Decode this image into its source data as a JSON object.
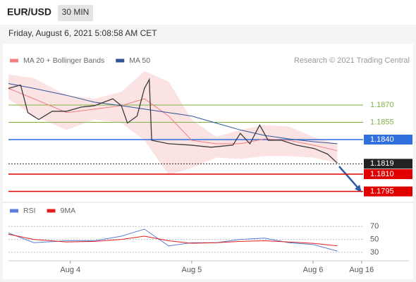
{
  "header": {
    "symbol": "EUR/USD",
    "timeframe": "30 MIN",
    "timestamp": "Friday, August 6, 2021 5:08:58 AM CET"
  },
  "chart_data": [
    {
      "type": "line",
      "credit": "Research © 2021 Trading Central",
      "x": [
        3.49,
        3.59,
        3.65,
        3.74,
        3.85,
        3.97,
        4.09,
        4.2,
        4.35,
        4.42,
        4.47,
        4.55,
        4.61,
        4.65,
        4.67,
        4.81,
        4.99,
        5.16,
        5.34,
        5.4,
        5.48,
        5.56,
        5.63,
        5.74,
        5.86,
        6.01,
        6.12,
        6.2
      ],
      "values": [
        1.18844,
        1.18874,
        1.18634,
        1.18574,
        1.18646,
        1.18646,
        1.18682,
        1.18694,
        1.18754,
        1.18694,
        1.18544,
        1.18604,
        1.18844,
        1.18922,
        1.18394,
        1.18364,
        1.18352,
        1.18334,
        1.18352,
        1.18454,
        1.18364,
        1.18526,
        1.18394,
        1.18394,
        1.18352,
        1.18322,
        1.18274,
        1.18196
      ],
      "color": "#3a3a3a",
      "xlim": [
        3.49,
        6.79
      ],
      "ylim": [
        1.1788,
        1.1903
      ],
      "series": [
        {
          "name": "MA 20 + Bollinger Bands",
          "color": "#f08080",
          "x": [
            3.49,
            3.7,
            3.97,
            4.2,
            4.42,
            4.61,
            4.81,
            5.0,
            5.2,
            5.4,
            5.6,
            5.8,
            6.0,
            6.2
          ],
          "values": [
            1.18844,
            1.18754,
            1.18634,
            1.18664,
            1.18694,
            1.18754,
            1.18604,
            1.18394,
            1.18364,
            1.18364,
            1.18406,
            1.18394,
            1.18352,
            1.18304
          ],
          "band_upper": [
            1.18964,
            1.18934,
            1.18784,
            1.18754,
            1.18814,
            1.18994,
            1.18904,
            1.18574,
            1.18424,
            1.18484,
            1.18526,
            1.18514,
            1.18424,
            1.18364
          ],
          "band_lower": [
            1.18754,
            1.18604,
            1.18484,
            1.18574,
            1.18544,
            1.18394,
            1.18094,
            1.18154,
            1.18244,
            1.18232,
            1.18256,
            1.18256,
            1.18244,
            1.18196
          ]
        },
        {
          "name": "MA 50",
          "color": "#2f5597",
          "x": [
            3.49,
            3.7,
            3.97,
            4.2,
            4.42,
            4.61,
            4.81,
            5.0,
            5.2,
            5.4,
            5.6,
            5.8,
            6.0,
            6.2
          ],
          "values": [
            1.18886,
            1.18844,
            1.18784,
            1.18724,
            1.18694,
            1.18664,
            1.18634,
            1.18604,
            1.18544,
            1.18484,
            1.18436,
            1.18406,
            1.18382,
            1.18364
          ]
        }
      ],
      "levels": [
        {
          "value": 1.187,
          "label": "1.1870",
          "color": "#7cb342",
          "boxed": false
        },
        {
          "value": 1.1855,
          "label": "1.1855",
          "color": "#7cb342",
          "boxed": false
        },
        {
          "value": 1.184,
          "label": "1.1840",
          "color": "#2f6fde",
          "boxed": true
        },
        {
          "value": 1.1819,
          "label": "1.1819",
          "color": "#222222",
          "boxed": true
        },
        {
          "value": 1.181,
          "label": "1.1810",
          "color": "#e00000",
          "boxed": true
        },
        {
          "value": 1.1795,
          "label": "1.1795",
          "color": "#e00000",
          "boxed": true
        }
      ]
    },
    {
      "type": "line",
      "series": [
        {
          "name": "RSI",
          "color": "#5b7fd6",
          "x": [
            3.49,
            3.7,
            3.97,
            4.2,
            4.42,
            4.61,
            4.81,
            5.0,
            5.2,
            5.4,
            5.6,
            5.8,
            6.0,
            6.2
          ],
          "values": [
            60,
            45,
            48,
            48,
            55,
            66,
            40,
            45,
            45,
            50,
            52,
            45,
            42,
            32
          ]
        },
        {
          "name": "9MA",
          "color": "#e02020",
          "x": [
            3.49,
            3.7,
            3.97,
            4.2,
            4.42,
            4.61,
            4.81,
            5.0,
            5.2,
            5.4,
            5.6,
            5.8,
            6.0,
            6.2
          ],
          "values": [
            58,
            50,
            46,
            47,
            50,
            55,
            48,
            44,
            45,
            47,
            48,
            46,
            44,
            40
          ]
        }
      ],
      "xlim": [
        3.49,
        6.79
      ],
      "ylim": [
        19,
        90
      ],
      "yticks": [
        30,
        50,
        70
      ],
      "xticks": [
        {
          "value": 4,
          "label": "Aug 4"
        },
        {
          "value": 5,
          "label": "Aug 5"
        },
        {
          "value": 6,
          "label": "Aug 6"
        },
        {
          "value": 6.4,
          "label": "Aug 16"
        }
      ],
      "grid": true
    }
  ]
}
